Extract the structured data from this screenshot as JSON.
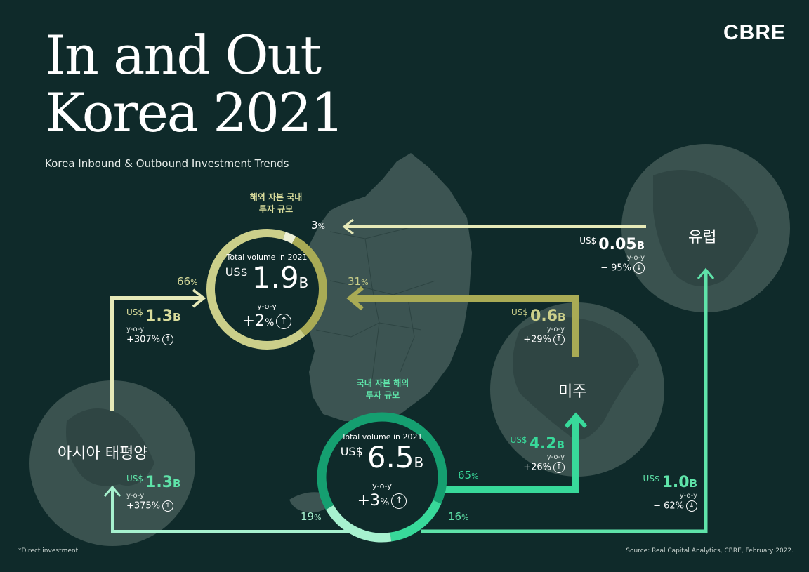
{
  "header": {
    "title_line1": "In and Out",
    "title_line2": "Korea 2021",
    "subtitle": "Korea Inbound & Outbound Investment Trends",
    "logo": "CBRE"
  },
  "footer": {
    "footnote": "*Direct investment",
    "source": "Source: Real Capital Analytics, CBRE, February 2022."
  },
  "regions": {
    "asia_pacific": "아시아 태평양",
    "americas": "미주",
    "europe": "유럽"
  },
  "inbound": {
    "label_line1": "해외 자본 국내",
    "label_line2": "투자 규모",
    "total_label": "Total volume in 2021",
    "currency": "US$",
    "amount": "1.9",
    "unit": "B",
    "yoy_label": "y-o-y",
    "change": "+2",
    "change_unit": "%",
    "shares": {
      "asia_pacific": "66",
      "americas": "31",
      "europe": "3",
      "unit": "%"
    },
    "flows": {
      "asia_pacific": {
        "currency": "US$",
        "amount": "1.3",
        "unit": "B",
        "yoy_label": "y-o-y",
        "change": "+307%",
        "direction": "up"
      },
      "americas": {
        "currency": "US$",
        "amount": "0.6",
        "unit": "B",
        "yoy_label": "y-o-y",
        "change": "+29%",
        "direction": "up"
      },
      "europe": {
        "currency": "US$",
        "amount": "0.05",
        "unit": "B",
        "yoy_label": "y-o-y",
        "change": "− 95%",
        "direction": "down"
      }
    }
  },
  "outbound": {
    "label_line1": "국내 자본 해외",
    "label_line2": "투자 규모",
    "total_label": "Total volume in 2021",
    "currency": "US$",
    "amount": "6.5",
    "unit": "B",
    "yoy_label": "y-o-y",
    "change": "+3",
    "change_unit": "%",
    "shares": {
      "americas": "65",
      "europe": "16",
      "asia_pacific": "19",
      "unit": "%"
    },
    "flows": {
      "asia_pacific": {
        "currency": "US$",
        "amount": "1.3",
        "unit": "B",
        "yoy_label": "y-o-y",
        "change": "+375%",
        "direction": "up"
      },
      "americas": {
        "currency": "US$",
        "amount": "4.2",
        "unit": "B",
        "yoy_label": "y-o-y",
        "change": "+26%",
        "direction": "up"
      },
      "europe": {
        "currency": "US$",
        "amount": "1.0",
        "unit": "B",
        "yoy_label": "y-o-y",
        "change": "− 62%",
        "direction": "down"
      }
    }
  },
  "colors": {
    "background": "#0f2a2a",
    "map": "#3c5452",
    "globe": "#3a524f",
    "inbound_light": "#e6e9b8",
    "inbound_mid": "#cbcf8a",
    "inbound_dark": "#a9ab55",
    "outbound_dark": "#159f70",
    "outbound_mid": "#38d99a",
    "outbound_light": "#a7f1cf",
    "inbound_text": "#d9dc9b",
    "outbound_text": "#5fe3a9"
  },
  "icons": {
    "up": "arrow-up-circle-icon",
    "down": "arrow-down-circle-icon"
  }
}
